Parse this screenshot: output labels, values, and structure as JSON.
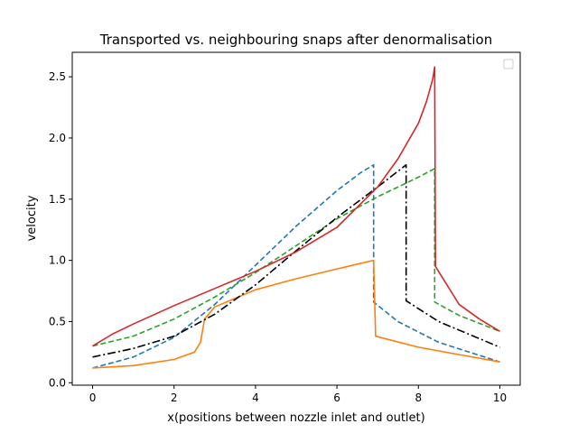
{
  "chart_data": {
    "type": "line",
    "title": "Transported vs. neighbouring snaps after denormalisation",
    "xlabel": "x(positions between nozzle inlet and outlet)",
    "ylabel": "velocity",
    "xlim": [
      -0.5,
      10.5
    ],
    "ylim": [
      -0.02,
      2.7
    ],
    "xticks": [
      "0",
      "2",
      "4",
      "6",
      "8",
      "10"
    ],
    "yticks": [
      "0.0",
      "0.5",
      "1.0",
      "1.5",
      "2.0",
      "2.5"
    ],
    "grid": false,
    "legend": "top-right (empty)",
    "series": [
      {
        "color": "#1f77b4",
        "style": "dashed",
        "points": [
          [
            0,
            0.12
          ],
          [
            1,
            0.21
          ],
          [
            2,
            0.37
          ],
          [
            3,
            0.64
          ],
          [
            4,
            0.96
          ],
          [
            5,
            1.28
          ],
          [
            6,
            1.57
          ],
          [
            6.6,
            1.72
          ],
          [
            6.9,
            1.78
          ],
          [
            6.9,
            0.66
          ],
          [
            7.5,
            0.5
          ],
          [
            8.5,
            0.33
          ],
          [
            10,
            0.17
          ]
        ]
      },
      {
        "color": "#ff7f0e",
        "style": "solid",
        "points": [
          [
            0,
            0.12
          ],
          [
            1,
            0.14
          ],
          [
            2,
            0.19
          ],
          [
            2.5,
            0.25
          ],
          [
            2.65,
            0.33
          ],
          [
            2.75,
            0.52
          ],
          [
            3,
            0.62
          ],
          [
            4,
            0.76
          ],
          [
            5,
            0.85
          ],
          [
            6,
            0.93
          ],
          [
            6.9,
            1.0
          ],
          [
            6.95,
            0.38
          ],
          [
            8,
            0.29
          ],
          [
            9,
            0.23
          ],
          [
            10,
            0.17
          ]
        ]
      },
      {
        "color": "#2ca02c",
        "style": "dashed",
        "points": [
          [
            0,
            0.3
          ],
          [
            1,
            0.38
          ],
          [
            2,
            0.52
          ],
          [
            3,
            0.7
          ],
          [
            4,
            0.9
          ],
          [
            5,
            1.12
          ],
          [
            6,
            1.34
          ],
          [
            7,
            1.52
          ],
          [
            8,
            1.68
          ],
          [
            8.4,
            1.75
          ],
          [
            8.4,
            0.66
          ],
          [
            9,
            0.55
          ],
          [
            10,
            0.42
          ]
        ]
      },
      {
        "color": "#000000",
        "style": "dashdot",
        "points": [
          [
            0,
            0.21
          ],
          [
            1,
            0.28
          ],
          [
            2,
            0.38
          ],
          [
            3,
            0.56
          ],
          [
            4,
            0.8
          ],
          [
            5,
            1.08
          ],
          [
            6,
            1.35
          ],
          [
            7,
            1.6
          ],
          [
            7.7,
            1.78
          ],
          [
            7.7,
            0.67
          ],
          [
            8.5,
            0.5
          ],
          [
            10,
            0.29
          ]
        ]
      },
      {
        "color": "#d62728",
        "style": "solid",
        "points": [
          [
            0,
            0.3
          ],
          [
            0.5,
            0.4
          ],
          [
            1,
            0.48
          ],
          [
            2,
            0.63
          ],
          [
            3,
            0.77
          ],
          [
            4,
            0.91
          ],
          [
            5,
            1.07
          ],
          [
            6,
            1.27
          ],
          [
            7,
            1.6
          ],
          [
            7.5,
            1.83
          ],
          [
            8,
            2.12
          ],
          [
            8.2,
            2.3
          ],
          [
            8.35,
            2.48
          ],
          [
            8.4,
            2.58
          ],
          [
            8.42,
            0.95
          ],
          [
            9,
            0.64
          ],
          [
            9.5,
            0.52
          ],
          [
            10,
            0.42
          ]
        ]
      }
    ]
  }
}
